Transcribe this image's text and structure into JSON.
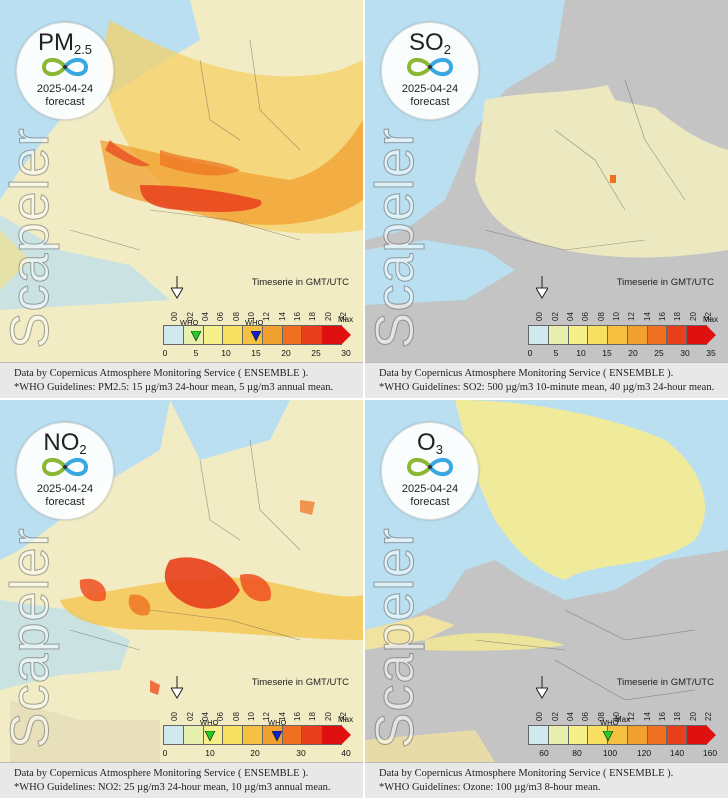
{
  "panels": [
    {
      "pollutant": "PM",
      "subscript": "2.5",
      "date": "2025-04-24",
      "kind": "forecast",
      "watermark": "Scapeler",
      "timeserie_label": "Timeserie in GMT/UTC",
      "hours": [
        "00",
        "02",
        "04",
        "06",
        "08",
        "10",
        "12",
        "14",
        "16",
        "18",
        "20",
        "22"
      ],
      "who_labels": [
        "WHO",
        "WHO"
      ],
      "scale_ticks": [
        "0",
        "5",
        "10",
        "15",
        "20",
        "25",
        "30"
      ],
      "max_label": "Max",
      "who_marker_values": [
        5,
        15
      ],
      "caption_line1": "Data by Copernicus Atmosphere Monitoring Service ( ENSEMBLE ).",
      "caption_line2": "*WHO Guidelines: PM2.5: 15 µg/m3 24-hour mean, 5 µg/m3 annual mean."
    },
    {
      "pollutant": "SO",
      "subscript": "2",
      "date": "2025-04-24",
      "kind": "forecast",
      "watermark": "Scapeler",
      "timeserie_label": "Timeserie in GMT/UTC",
      "hours": [
        "00",
        "02",
        "04",
        "06",
        "08",
        "10",
        "12",
        "14",
        "16",
        "18",
        "20",
        "22"
      ],
      "who_labels": [],
      "scale_ticks": [
        "0",
        "5",
        "10",
        "15",
        "20",
        "25",
        "30",
        "35"
      ],
      "max_label": "Max",
      "who_marker_values": [],
      "caption_line1": "Data by Copernicus Atmosphere Monitoring Service ( ENSEMBLE ).",
      "caption_line2": "*WHO Guidelines: SO2: 500 µg/m3 10-minute mean, 40 µg/m3 24-hour mean."
    },
    {
      "pollutant": "NO",
      "subscript": "2",
      "date": "2025-04-24",
      "kind": "forecast",
      "watermark": "Scapeler",
      "timeserie_label": "Timeserie in GMT/UTC",
      "hours": [
        "00",
        "02",
        "04",
        "06",
        "08",
        "10",
        "12",
        "14",
        "16",
        "18",
        "20",
        "22"
      ],
      "who_labels": [
        "WHO",
        "WHO"
      ],
      "scale_ticks": [
        "0",
        "10",
        "20",
        "30",
        "40"
      ],
      "max_label": "Max",
      "who_marker_values": [
        10,
        25
      ],
      "caption_line1": "Data by Copernicus Atmosphere Monitoring Service ( ENSEMBLE ).",
      "caption_line2": "*WHO Guidelines: NO2: 25 µg/m3 24-hour mean, 10 µg/m3 annual mean."
    },
    {
      "pollutant": "O",
      "subscript": "3",
      "date": "2025-04-24",
      "kind": "forecast",
      "watermark": "Scapeler",
      "timeserie_label": "Timeserie in GMT/UTC",
      "hours": [
        "00",
        "02",
        "04",
        "06",
        "08",
        "10",
        "12",
        "14",
        "16",
        "18",
        "20",
        "22"
      ],
      "who_labels": [
        "WHO"
      ],
      "scale_ticks": [
        "60",
        "80",
        "100",
        "120",
        "140",
        "160"
      ],
      "max_label": "Max",
      "who_marker_values": [
        100
      ],
      "caption_line1": "Data by Copernicus Atmosphere Monitoring Service ( ENSEMBLE ).",
      "caption_line2": "*WHO Guidelines: Ozone: 100 µg/m3 8-hour mean."
    }
  ],
  "colors": {
    "sea": "#b9dff0",
    "land": "#f2ecc4",
    "nodata": "#c4c4c4",
    "scale": [
      "#cfe9ee",
      "#e8f0b0",
      "#f5f08a",
      "#f7e060",
      "#f6c040",
      "#f2a030",
      "#ee7020",
      "#e8401c",
      "#e01010"
    ],
    "who_green": "#22cc22",
    "who_blue": "#1020cc"
  }
}
